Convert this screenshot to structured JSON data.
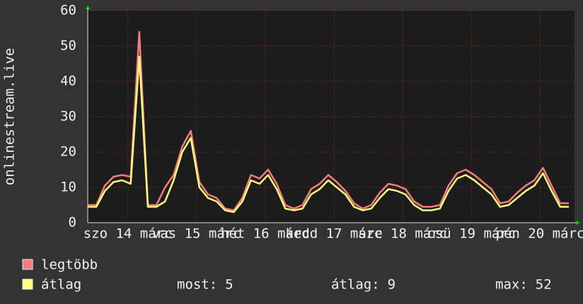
{
  "chart_data": {
    "type": "line",
    "y_label": "onlinestream.live",
    "x": [
      -6,
      -3,
      0,
      3,
      6,
      9,
      12,
      15,
      18,
      21,
      24,
      27,
      30,
      33,
      36,
      39,
      42,
      45,
      48,
      51,
      54,
      57,
      60,
      63,
      66,
      69,
      72,
      75,
      78,
      81,
      84,
      87,
      90,
      93,
      96,
      99,
      102,
      105,
      108,
      111,
      114,
      117,
      120,
      123,
      126,
      129,
      132,
      135,
      138,
      141,
      144,
      147,
      150,
      153,
      156,
      159,
      162
    ],
    "xlim": [
      -6,
      164
    ],
    "xticks": [
      {
        "value": 8,
        "label": "szo 14 márc"
      },
      {
        "value": 32,
        "label": "vas 15 márc"
      },
      {
        "value": 56,
        "label": "hét 16 márc"
      },
      {
        "value": 80,
        "label": "kedd 17 márc"
      },
      {
        "value": 104,
        "label": "sze 18 márc"
      },
      {
        "value": 128,
        "label": "csü 19 márc"
      },
      {
        "value": 152,
        "label": "pén 20 márc"
      }
    ],
    "ylim": [
      0,
      60
    ],
    "yticks": [
      0,
      10,
      20,
      30,
      40,
      50,
      60
    ],
    "grid": true,
    "series": [
      {
        "name": "legtöbb",
        "color": "#f47c7c",
        "values": [
          5,
          5,
          10.5,
          13,
          13.5,
          13,
          54,
          5,
          5,
          10,
          13.5,
          21.5,
          26,
          11.5,
          8,
          7,
          4,
          3.5,
          7,
          13.5,
          12.5,
          15,
          11,
          5,
          4,
          5,
          9.5,
          11,
          13.5,
          11.5,
          9,
          5.5,
          4,
          5,
          8.5,
          11,
          10.5,
          9.5,
          6,
          4.5,
          4.5,
          5,
          10.5,
          14,
          15,
          13.5,
          11.5,
          9.5,
          5.5,
          6,
          8.5,
          10.5,
          12,
          15.5,
          10.5,
          5.5,
          5.5
        ]
      },
      {
        "name": "átlag",
        "color": "#ffff80",
        "values": [
          4.5,
          4.5,
          9,
          11.5,
          12,
          11,
          47,
          4.5,
          4.5,
          6,
          12,
          20,
          24,
          10,
          7,
          6,
          3.5,
          3,
          6,
          12,
          11,
          13.5,
          9.5,
          4,
          3.5,
          4,
          8,
          9.5,
          12,
          10,
          8,
          4.5,
          3.5,
          4,
          7,
          9.5,
          9,
          8,
          5,
          3.5,
          3.5,
          4,
          9,
          12.5,
          13.5,
          12,
          10,
          8,
          4.5,
          5,
          7,
          9,
          10.5,
          14,
          9,
          4.5,
          4.5
        ]
      }
    ],
    "stats": [
      {
        "label": "most:",
        "value": 5
      },
      {
        "label": "átlag:",
        "value": 9
      },
      {
        "label": "max:",
        "value": 52
      }
    ]
  }
}
